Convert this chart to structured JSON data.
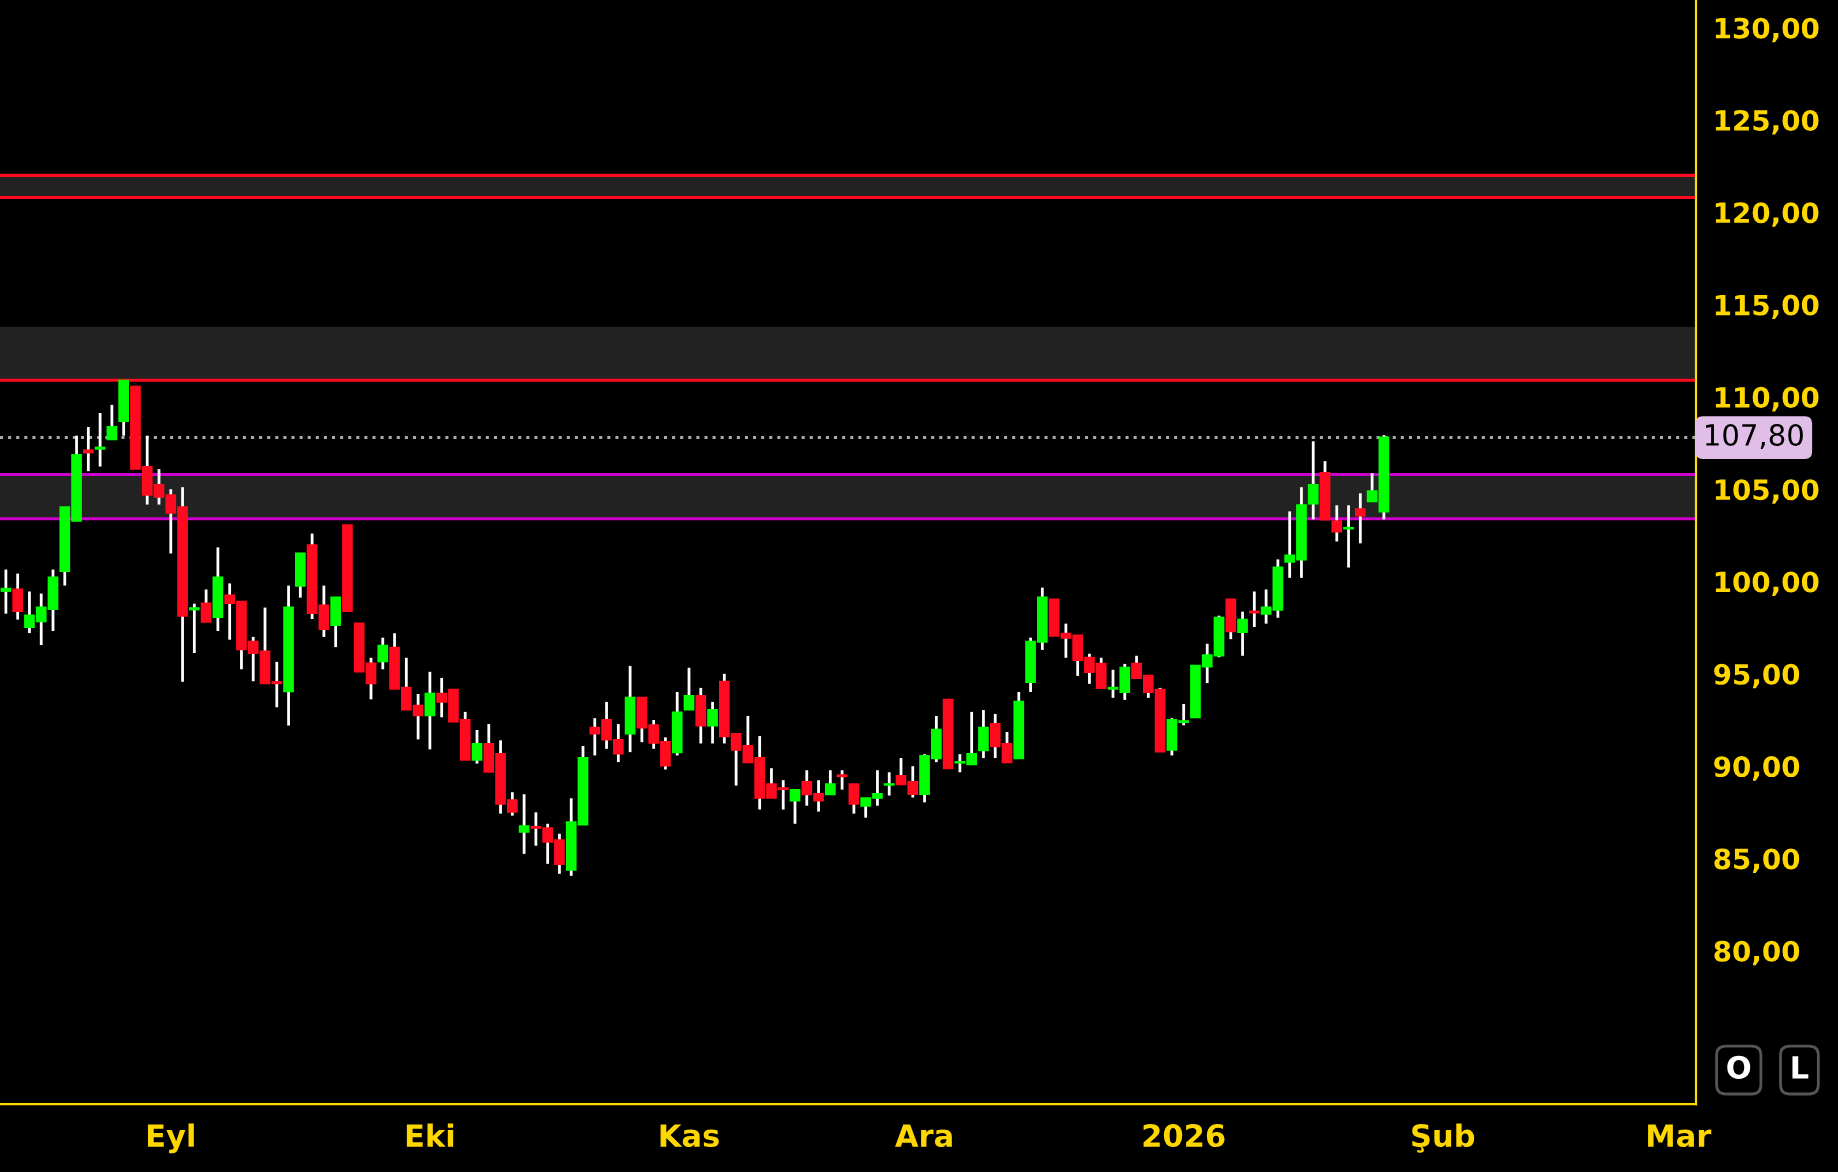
{
  "chart_data": {
    "type": "candlestick",
    "categories": [
      null,
      null,
      null,
      null,
      null,
      null,
      null,
      null,
      null,
      null,
      null,
      null,
      null,
      null,
      "Eyl",
      null,
      null,
      null,
      null,
      null,
      null,
      null,
      null,
      null,
      null,
      null,
      null,
      null,
      null,
      null,
      null,
      null,
      null,
      null,
      null,
      null,
      "Eki",
      null,
      null,
      null,
      null,
      null,
      null,
      null,
      null,
      null,
      null,
      null,
      null,
      null,
      null,
      null,
      null,
      null,
      null,
      null,
      null,
      null,
      "Kas",
      null,
      null,
      null,
      null,
      null,
      null,
      null,
      null,
      null,
      null,
      null,
      null,
      null,
      null,
      null,
      null,
      null,
      null,
      null,
      "Ara",
      null,
      null,
      null,
      null,
      null,
      null,
      null,
      null,
      null,
      null,
      null,
      null,
      null,
      null,
      null,
      null,
      null,
      null,
      null,
      null,
      null,
      "2026",
      null,
      null,
      null,
      null,
      null,
      null,
      null,
      null,
      null,
      null,
      null,
      null,
      null,
      null,
      null,
      null,
      null,
      null,
      null,
      null,
      null,
      "Şub",
      null,
      null,
      null,
      null,
      null,
      null,
      null,
      null,
      null,
      null,
      null,
      null,
      null,
      null,
      null,
      null,
      null,
      null,
      null,
      "Mar",
      null
    ],
    "ohlc": [
      [
        99.5,
        100.65,
        98.26,
        99.6
      ],
      [
        99.57,
        100.43,
        97.94,
        98.41
      ],
      [
        97.54,
        99.46,
        97.21,
        98.16
      ],
      [
        97.86,
        99.35,
        96.56,
        98.59
      ],
      [
        98.52,
        100.65,
        97.32,
        100.22
      ],
      [
        100.58,
        104.02,
        99.78,
        104.02
      ],
      [
        103.3,
        107.9,
        103.3,
        106.85
      ],
      [
        107.1,
        108.37,
        105.98,
        107.0
      ],
      [
        107.2,
        109.13,
        106.23,
        107.25
      ],
      [
        107.72,
        109.57,
        107.72,
        108.37
      ],
      [
        108.7,
        110.87,
        107.9,
        110.87
      ],
      [
        110.54,
        110.6,
        106.1,
        106.12
      ],
      [
        106.2,
        107.9,
        104.17,
        104.71
      ],
      [
        105.22,
        106.09,
        104.17,
        104.6
      ],
      [
        104.67,
        105.0,
        101.52,
        103.73
      ],
      [
        104.02,
        105.11,
        94.57,
        98.16
      ],
      [
        98.5,
        98.8,
        96.13,
        98.55
      ],
      [
        98.8,
        99.57,
        97.83,
        97.83
      ],
      [
        98.08,
        101.85,
        97.32,
        100.22
      ],
      [
        99.24,
        99.9,
        96.85,
        98.84
      ],
      [
        98.9,
        98.9,
        95.25,
        96.34
      ],
      [
        96.74,
        97.0,
        94.6,
        96.13
      ],
      [
        96.2,
        98.59,
        94.5,
        94.5
      ],
      [
        94.55,
        95.65,
        93.19,
        94.5
      ],
      [
        94.06,
        99.78,
        92.2,
        98.59
      ],
      [
        99.78,
        101.52,
        99.13,
        101.52
      ],
      [
        101.96,
        102.6,
        97.97,
        98.3
      ],
      [
        98.7,
        99.78,
        97.0,
        97.43
      ],
      [
        97.65,
        99.13,
        96.45,
        99.13
      ],
      [
        103.04,
        103.04,
        98.41,
        98.41
      ],
      [
        97.72,
        97.72,
        95.1,
        95.14
      ],
      [
        95.55,
        95.87,
        93.62,
        94.5
      ],
      [
        95.69,
        96.96,
        95.25,
        96.52
      ],
      [
        96.41,
        97.2,
        94.2,
        94.2
      ],
      [
        94.24,
        95.87,
        93.08,
        93.08
      ],
      [
        93.26,
        93.91,
        91.45,
        92.76
      ],
      [
        92.76,
        95.11,
        90.91,
        93.91
      ],
      [
        93.91,
        94.78,
        92.65,
        93.5
      ],
      [
        94.13,
        94.13,
        92.43,
        92.43
      ],
      [
        92.5,
        92.94,
        90.36,
        90.36
      ],
      [
        90.36,
        91.96,
        90.14,
        91.2
      ],
      [
        91.2,
        92.28,
        89.71,
        89.71
      ],
      [
        90.65,
        91.4,
        87.43,
        87.97
      ],
      [
        88.15,
        88.59,
        87.32,
        87.54
      ],
      [
        86.45,
        88.48,
        85.25,
        86.74
      ],
      [
        86.7,
        87.5,
        85.69,
        86.67
      ],
      [
        86.63,
        86.88,
        84.71,
        85.91
      ],
      [
        85.98,
        86.34,
        84.17,
        84.71
      ],
      [
        84.39,
        88.26,
        84.06,
        86.96
      ],
      [
        86.85,
        91.09,
        86.85,
        90.43
      ],
      [
        92.07,
        92.6,
        90.58,
        91.78
      ],
      [
        92.5,
        93.48,
        90.94,
        91.45
      ],
      [
        91.41,
        92.28,
        90.22,
        90.69
      ],
      [
        91.78,
        95.43,
        90.76,
        93.7
      ],
      [
        93.7,
        93.7,
        91.3,
        92.1
      ],
      [
        92.21,
        92.5,
        90.94,
        91.27
      ],
      [
        91.3,
        91.56,
        89.82,
        90.04
      ],
      [
        90.76,
        94.02,
        90.58,
        92.9
      ],
      [
        93.08,
        95.33,
        93.08,
        93.8
      ],
      [
        93.8,
        94.24,
        91.23,
        92.21
      ],
      [
        92.21,
        93.48,
        91.23,
        93.04
      ],
      [
        94.56,
        95.0,
        91.23,
        91.63
      ],
      [
        91.74,
        91.74,
        88.95,
        90.9
      ],
      [
        91.09,
        92.72,
        90.22,
        90.22
      ],
      [
        90.44,
        91.63,
        87.65,
        88.3
      ],
      [
        89.02,
        89.89,
        88.3,
        88.3
      ],
      [
        88.8,
        89.24,
        87.65,
        88.77
      ],
      [
        88.15,
        88.7,
        86.88,
        88.7
      ],
      [
        89.13,
        89.78,
        87.86,
        88.48
      ],
      [
        88.48,
        89.24,
        87.54,
        88.15
      ],
      [
        88.48,
        89.78,
        88.48,
        89.02
      ],
      [
        89.5,
        89.78,
        88.73,
        89.46
      ],
      [
        89.02,
        89.02,
        87.43,
        87.97
      ],
      [
        87.86,
        88.26,
        87.21,
        88.26
      ],
      [
        88.3,
        89.78,
        87.86,
        88.48
      ],
      [
        89.0,
        89.67,
        88.41,
        89.02
      ],
      [
        89.46,
        90.44,
        89.02,
        89.02
      ],
      [
        89.13,
        90.0,
        88.3,
        88.5
      ],
      [
        88.5,
        90.65,
        88.04,
        90.54
      ],
      [
        90.44,
        92.72,
        90.22,
        91.96
      ],
      [
        93.59,
        93.59,
        89.89,
        89.89
      ],
      [
        90.2,
        90.65,
        89.67,
        90.22
      ],
      [
        90.11,
        92.94,
        90.11,
        90.65
      ],
      [
        90.87,
        93.04,
        90.44,
        92.07
      ],
      [
        92.28,
        92.83,
        90.44,
        91.09
      ],
      [
        91.2,
        91.85,
        90.22,
        90.22
      ],
      [
        90.44,
        94.02,
        90.44,
        93.48
      ],
      [
        94.56,
        96.96,
        94.02,
        96.74
      ],
      [
        96.74,
        99.67,
        96.3,
        99.13
      ],
      [
        99.02,
        99.02,
        97.07,
        97.07
      ],
      [
        97.17,
        97.72,
        95.87,
        96.96
      ],
      [
        97.07,
        97.07,
        94.89,
        95.76
      ],
      [
        95.87,
        96.09,
        94.46,
        95.11
      ],
      [
        95.54,
        95.87,
        94.24,
        94.24
      ],
      [
        94.2,
        95.22,
        93.7,
        94.24
      ],
      [
        94.02,
        95.54,
        93.59,
        95.33
      ],
      [
        95.54,
        95.98,
        94.78,
        94.78
      ],
      [
        94.89,
        94.89,
        93.7,
        94.02
      ],
      [
        94.13,
        94.24,
        90.8,
        90.8
      ],
      [
        90.9,
        92.6,
        90.58,
        92.5
      ],
      [
        92.4,
        93.37,
        92.21,
        92.43
      ],
      [
        92.65,
        95.43,
        92.65,
        95.43
      ],
      [
        95.4,
        96.63,
        94.5,
        96.0
      ],
      [
        96.0,
        98.15,
        95.9,
        98.04
      ],
      [
        99.02,
        99.02,
        96.88,
        97.32
      ],
      [
        97.28,
        98.37,
        95.98,
        97.93
      ],
      [
        98.37,
        99.46,
        97.54,
        98.33
      ],
      [
        98.26,
        99.57,
        97.72,
        98.59
      ],
      [
        98.48,
        101.2,
        98.04,
        100.76
      ],
      [
        101.08,
        103.8,
        100.2,
        101.41
      ],
      [
        101.2,
        105.11,
        100.2,
        104.13
      ],
      [
        104.24,
        107.6,
        103.37,
        105.22
      ],
      [
        105.87,
        106.52,
        103.37,
        103.37
      ],
      [
        103.26,
        104.13,
        102.17,
        102.72
      ],
      [
        102.88,
        104.13,
        100.76,
        102.9
      ],
      [
        103.91,
        104.78,
        102.07,
        103.59
      ],
      [
        104.35,
        105.87,
        104.35,
        104.89
      ],
      [
        103.8,
        107.93,
        103.37,
        107.8
      ],
      null,
      null,
      null,
      null,
      null,
      null,
      null,
      null,
      null,
      null,
      null,
      null,
      null,
      null,
      null,
      null,
      null,
      null,
      null,
      null,
      null,
      null,
      null,
      null,
      null,
      null
    ],
    "colors": [
      "#00ff00",
      "#ff0a1e",
      "#00ff00",
      "#00ff00",
      "#00ff00",
      "#00ff00",
      "#00ff00",
      "#ff0a1e",
      "#00ff00",
      "#00ff00",
      "#00ff00",
      "#ff0a1e",
      "#ff0a1e",
      "#ff0a1e",
      "#ff0a1e",
      "#ff0a1e",
      "#00ff00",
      "#ff0a1e",
      "#00ff00",
      "#ff0a1e",
      "#ff0a1e",
      "#ff0a1e",
      "#ff0a1e",
      "#ff0a1e",
      "#00ff00",
      "#00ff00",
      "#ff0a1e",
      "#ff0a1e",
      "#00ff00",
      "#ff0a1e",
      "#ff0a1e",
      "#ff0a1e",
      "#00ff00",
      "#ff0a1e",
      "#ff0a1e",
      "#ff0a1e",
      "#00ff00",
      "#ff0a1e",
      "#ff0a1e",
      "#ff0a1e",
      "#00ff00",
      "#ff0a1e",
      "#ff0a1e",
      "#ff0a1e",
      "#00ff00",
      "#ff0a1e",
      "#ff0a1e",
      "#ff0a1e",
      "#00ff00",
      "#00ff00",
      "#ff0a1e",
      "#ff0a1e",
      "#ff0a1e",
      "#00ff00",
      "#ff0a1e",
      "#ff0a1e",
      "#ff0a1e",
      "#00ff00",
      "#00ff00",
      "#ff0a1e",
      "#00ff00",
      "#ff0a1e",
      "#ff0a1e",
      "#ff0a1e",
      "#ff0a1e",
      "#ff0a1e",
      "#ff0a1e",
      "#00ff00",
      "#ff0a1e",
      "#ff0a1e",
      "#00ff00",
      "#ff0a1e",
      "#ff0a1e",
      "#00ff00",
      "#00ff00",
      "#00ff00",
      "#ff0a1e",
      "#ff0a1e",
      "#00ff00",
      "#00ff00",
      "#ff0a1e",
      "#00ff00",
      "#00ff00",
      "#00ff00",
      "#ff0a1e",
      "#ff0a1e",
      "#00ff00",
      "#00ff00",
      "#00ff00",
      "#ff0a1e",
      "#ff0a1e",
      "#ff0a1e",
      "#ff0a1e",
      "#ff0a1e",
      "#00ff00",
      "#00ff00",
      "#ff0a1e",
      "#ff0a1e",
      "#ff0a1e",
      "#00ff00",
      "#00ff00",
      "#00ff00",
      "#00ff00",
      "#00ff00",
      "#ff0a1e",
      "#00ff00",
      "#ff0a1e",
      "#00ff00",
      "#00ff00",
      "#00ff00",
      "#00ff00",
      "#00ff00",
      "#ff0a1e",
      "#ff0a1e",
      "#00ff00",
      "#ff0a1e",
      "#00ff00",
      "#00ff00",
      null,
      null,
      null,
      null,
      null,
      null,
      null,
      null,
      null,
      null,
      null,
      null,
      null,
      null,
      null,
      null,
      null,
      null,
      null,
      null,
      null,
      null,
      null,
      null,
      null,
      null
    ],
    "ylim": [
      71.7,
      131.5
    ],
    "yticks": [
      {
        "value": 80,
        "label": "80,00"
      },
      {
        "value": 85,
        "label": "85,00"
      },
      {
        "value": 90,
        "label": "90,00"
      },
      {
        "value": 95,
        "label": "95,00"
      },
      {
        "value": 100,
        "label": "100,00"
      },
      {
        "value": 105,
        "label": "105,00"
      },
      {
        "value": 110,
        "label": "110,00"
      },
      {
        "value": 115,
        "label": "115,00"
      },
      {
        "value": 120,
        "label": "120,00"
      },
      {
        "value": 125,
        "label": "125,00"
      },
      {
        "value": 130,
        "label": "130,00"
      }
    ],
    "bands": [
      {
        "axis": "y",
        "from": 110.9,
        "to": 113.8,
        "color": "#222222"
      },
      {
        "axis": "y",
        "from": 120.8,
        "to": 122.0,
        "color": "#222222"
      },
      {
        "axis": "y",
        "from": 103.4,
        "to": 105.8,
        "color": "#222222"
      }
    ],
    "ref_lines": [
      {
        "axis": "y",
        "value": 107.8,
        "label": "107,80",
        "color": "#aaaaaa",
        "line_style": "dotted"
      },
      {
        "axis": "y",
        "value": 110.9,
        "color": "#ff0a1e",
        "line_style": "solid"
      },
      {
        "axis": "y",
        "value": 120.8,
        "color": "#ff0a1e",
        "line_style": "solid"
      },
      {
        "axis": "y",
        "value": 122.0,
        "color": "#ff0a1e",
        "line_style": "solid"
      },
      {
        "axis": "y",
        "value": 105.8,
        "color": "#cc00cc",
        "line_style": "solid"
      },
      {
        "axis": "y",
        "value": 103.4,
        "color": "#cc00cc",
        "line_style": "solid"
      }
    ],
    "annotations": [
      "O",
      "L"
    ]
  }
}
